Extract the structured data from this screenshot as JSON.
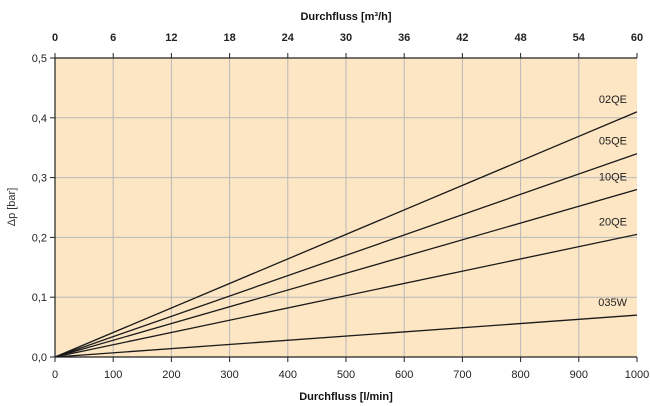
{
  "chart_data": {
    "type": "line",
    "x_bottom": {
      "label": "Durchfluss [l/min]",
      "range": [
        0,
        1000
      ],
      "ticks": [
        "0",
        "100",
        "200",
        "300",
        "400",
        "500",
        "600",
        "700",
        "800",
        "900",
        "1000"
      ]
    },
    "x_top": {
      "label": "Durchfluss [m³/h]",
      "range": [
        0,
        60
      ],
      "ticks": [
        "0",
        "6",
        "12",
        "18",
        "24",
        "30",
        "36",
        "42",
        "48",
        "54",
        "60"
      ]
    },
    "y": {
      "label": "Δp [bar]",
      "range": [
        0,
        0.5
      ],
      "ticks": [
        "0,0",
        "0,1",
        "0,2",
        "0,3",
        "0,4",
        "0,5"
      ]
    },
    "grid": true,
    "background_color": "#fce6c3",
    "series": [
      {
        "name": "02QE",
        "x": [
          0,
          1000
        ],
        "y": [
          0,
          0.41
        ]
      },
      {
        "name": "05QE",
        "x": [
          0,
          1000
        ],
        "y": [
          0,
          0.34
        ]
      },
      {
        "name": "10QE",
        "x": [
          0,
          1000
        ],
        "y": [
          0,
          0.28
        ]
      },
      {
        "name": "20QE",
        "x": [
          0,
          1000
        ],
        "y": [
          0,
          0.205
        ]
      },
      {
        "name": "035W",
        "x": [
          0,
          1000
        ],
        "y": [
          0,
          0.07
        ]
      }
    ]
  }
}
